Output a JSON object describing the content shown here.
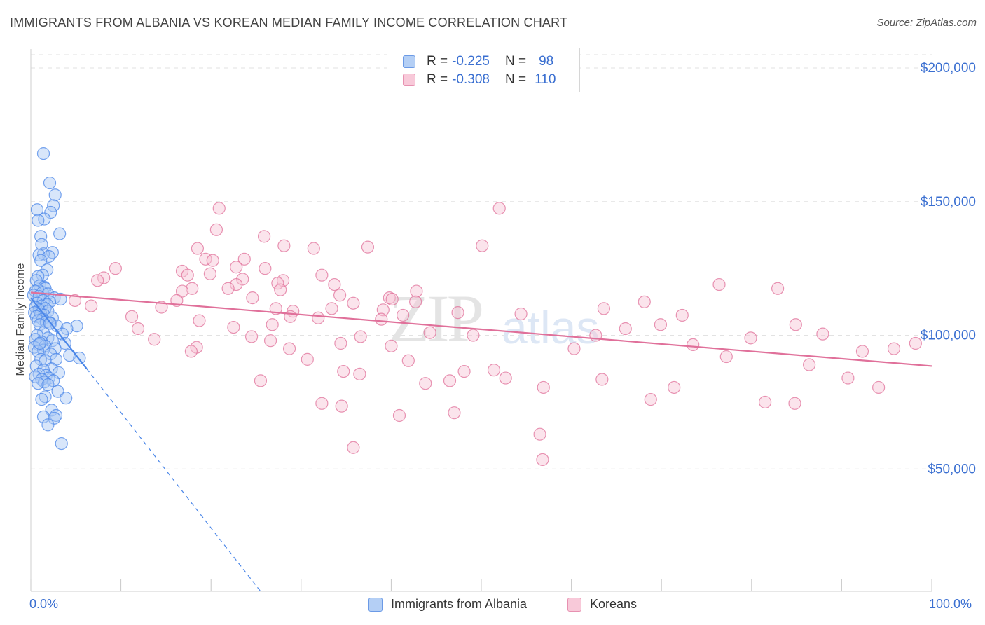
{
  "header": {
    "title": "IMMIGRANTS FROM ALBANIA VS KOREAN MEDIAN FAMILY INCOME CORRELATION CHART",
    "source": "Source: ZipAtlas.com"
  },
  "legend": {
    "albania": {
      "r_label": "R =",
      "r_value": "-0.225",
      "n_label": "N =",
      "n_value": "98"
    },
    "korean": {
      "r_label": "R =",
      "r_value": "-0.308",
      "n_label": "N =",
      "n_value": "110"
    }
  },
  "watermark": {
    "zip": "ZIP",
    "atlas": "atlas"
  },
  "colors": {
    "albania": "#4a86e8",
    "albania_fill": "#a9c8f5",
    "korean": "#e0709a",
    "korean_fill": "#f6c3d5",
    "tick_text": "#3a6fd1",
    "grid": "#e2e2e2"
  },
  "chart_data": {
    "type": "scatter",
    "xlabel": "",
    "ylabel": "Median Family Income",
    "xlim": [
      0,
      100
    ],
    "ylim": [
      0,
      210000
    ],
    "x_tick_labels": {
      "left": "0.0%",
      "right": "100.0%"
    },
    "y_ticks": [
      {
        "value": 50000,
        "label": "$50,000"
      },
      {
        "value": 100000,
        "label": "$100,000"
      },
      {
        "value": 150000,
        "label": "$150,000"
      },
      {
        "value": 200000,
        "label": "$200,000"
      }
    ],
    "series": [
      {
        "name": "Immigrants from Albania",
        "trend": {
          "x": [
            0,
            6.2
          ],
          "y": [
            114000,
            87500
          ],
          "dashed_to": [
            25.5,
            0
          ]
        },
        "points": [
          [
            1.4,
            168000
          ],
          [
            2.1,
            157000
          ],
          [
            2.7,
            152500
          ],
          [
            2.5,
            148500
          ],
          [
            2.2,
            146000
          ],
          [
            0.7,
            147000
          ],
          [
            1.5,
            143500
          ],
          [
            0.8,
            143000
          ],
          [
            3.2,
            138000
          ],
          [
            1.1,
            137000
          ],
          [
            1.2,
            134000
          ],
          [
            2.4,
            131000
          ],
          [
            1.4,
            130500
          ],
          [
            0.9,
            130000
          ],
          [
            2.0,
            129500
          ],
          [
            1.1,
            128000
          ],
          [
            1.8,
            124500
          ],
          [
            1.3,
            122500
          ],
          [
            0.8,
            122000
          ],
          [
            0.6,
            120500
          ],
          [
            1.0,
            118500
          ],
          [
            1.5,
            118000
          ],
          [
            1.6,
            117500
          ],
          [
            0.8,
            117000
          ],
          [
            0.5,
            116500
          ],
          [
            1.3,
            116000
          ],
          [
            1.9,
            115500
          ],
          [
            0.3,
            115000
          ],
          [
            0.9,
            114500
          ],
          [
            2.6,
            114000
          ],
          [
            3.3,
            113500
          ],
          [
            1.4,
            113000
          ],
          [
            2.1,
            112500
          ],
          [
            0.7,
            112000
          ],
          [
            1.8,
            111500
          ],
          [
            1.2,
            111000
          ],
          [
            0.5,
            110500
          ],
          [
            1.6,
            110000
          ],
          [
            0.9,
            109500
          ],
          [
            1.9,
            109000
          ],
          [
            0.4,
            108500
          ],
          [
            1.1,
            108000
          ],
          [
            1.5,
            107500
          ],
          [
            0.6,
            107000
          ],
          [
            2.4,
            106500
          ],
          [
            1.3,
            106000
          ],
          [
            0.8,
            105500
          ],
          [
            1.7,
            105000
          ],
          [
            2.2,
            104500
          ],
          [
            1.0,
            104000
          ],
          [
            2.9,
            103500
          ],
          [
            5.1,
            103500
          ],
          [
            4.0,
            102500
          ],
          [
            1.4,
            101000
          ],
          [
            3.5,
            100500
          ],
          [
            0.7,
            100000
          ],
          [
            1.9,
            99000
          ],
          [
            0.5,
            98500
          ],
          [
            2.4,
            98000
          ],
          [
            1.2,
            97500
          ],
          [
            3.8,
            97000
          ],
          [
            0.9,
            96500
          ],
          [
            1.6,
            96000
          ],
          [
            0.4,
            95500
          ],
          [
            2.7,
            95000
          ],
          [
            1.4,
            94500
          ],
          [
            0.8,
            94000
          ],
          [
            2.2,
            93000
          ],
          [
            4.3,
            92500
          ],
          [
            5.4,
            91500
          ],
          [
            1.1,
            91000
          ],
          [
            2.8,
            91000
          ],
          [
            1.6,
            90500
          ],
          [
            0.6,
            88500
          ],
          [
            2.3,
            87500
          ],
          [
            1.4,
            87000
          ],
          [
            3.1,
            86000
          ],
          [
            0.9,
            85500
          ],
          [
            1.7,
            85000
          ],
          [
            0.5,
            84500
          ],
          [
            2.0,
            84000
          ],
          [
            1.2,
            83500
          ],
          [
            2.5,
            83000
          ],
          [
            1.5,
            82500
          ],
          [
            0.8,
            82000
          ],
          [
            1.9,
            81500
          ],
          [
            3.0,
            79000
          ],
          [
            1.6,
            77000
          ],
          [
            3.9,
            76500
          ],
          [
            1.2,
            76000
          ],
          [
            2.3,
            72000
          ],
          [
            2.8,
            70000
          ],
          [
            1.4,
            69500
          ],
          [
            2.6,
            69000
          ],
          [
            1.9,
            66500
          ],
          [
            3.4,
            59500
          ],
          [
            1.0,
            97000
          ],
          [
            2.1,
            104500
          ]
        ]
      },
      {
        "name": "Koreans",
        "trend": {
          "x": [
            0,
            100
          ],
          "y": [
            116000,
            88500
          ]
        },
        "points": [
          [
            20.9,
            147500
          ],
          [
            52.0,
            147500
          ],
          [
            20.6,
            139500
          ],
          [
            25.9,
            137000
          ],
          [
            50.1,
            133500
          ],
          [
            28.1,
            133500
          ],
          [
            37.4,
            133000
          ],
          [
            31.4,
            132500
          ],
          [
            18.5,
            132500
          ],
          [
            19.4,
            128500
          ],
          [
            23.7,
            128500
          ],
          [
            20.2,
            128000
          ],
          [
            22.8,
            125500
          ],
          [
            9.4,
            125000
          ],
          [
            26.0,
            125000
          ],
          [
            16.8,
            124000
          ],
          [
            19.9,
            123000
          ],
          [
            32.3,
            122500
          ],
          [
            17.4,
            122500
          ],
          [
            8.1,
            121500
          ],
          [
            23.5,
            121000
          ],
          [
            7.4,
            120500
          ],
          [
            28.0,
            120500
          ],
          [
            27.4,
            119500
          ],
          [
            22.8,
            119000
          ],
          [
            33.7,
            119000
          ],
          [
            21.9,
            117500
          ],
          [
            17.9,
            117500
          ],
          [
            27.7,
            117000
          ],
          [
            16.8,
            116500
          ],
          [
            42.8,
            116500
          ],
          [
            34.3,
            115000
          ],
          [
            39.8,
            114000
          ],
          [
            24.6,
            114000
          ],
          [
            40.1,
            113500
          ],
          [
            16.2,
            113000
          ],
          [
            4.9,
            113000
          ],
          [
            42.7,
            112500
          ],
          [
            35.8,
            112000
          ],
          [
            6.7,
            111000
          ],
          [
            14.5,
            110500
          ],
          [
            27.2,
            110000
          ],
          [
            33.4,
            110000
          ],
          [
            39.1,
            109500
          ],
          [
            29.1,
            109000
          ],
          [
            47.4,
            108500
          ],
          [
            54.4,
            108000
          ],
          [
            41.3,
            107500
          ],
          [
            28.8,
            107000
          ],
          [
            11.2,
            107000
          ],
          [
            31.9,
            106500
          ],
          [
            38.9,
            106000
          ],
          [
            18.7,
            105500
          ],
          [
            26.8,
            104000
          ],
          [
            22.5,
            103000
          ],
          [
            11.9,
            102500
          ],
          [
            44.3,
            101000
          ],
          [
            49.1,
            100000
          ],
          [
            36.6,
            99500
          ],
          [
            24.5,
            99500
          ],
          [
            13.7,
            98500
          ],
          [
            26.6,
            98000
          ],
          [
            34.4,
            97000
          ],
          [
            40.0,
            96000
          ],
          [
            18.4,
            95500
          ],
          [
            28.7,
            95000
          ],
          [
            17.8,
            94000
          ],
          [
            30.7,
            91000
          ],
          [
            41.9,
            90500
          ],
          [
            51.4,
            87000
          ],
          [
            34.7,
            86500
          ],
          [
            48.1,
            86500
          ],
          [
            36.5,
            85500
          ],
          [
            52.7,
            84000
          ],
          [
            63.4,
            83500
          ],
          [
            25.5,
            83000
          ],
          [
            46.5,
            83000
          ],
          [
            43.8,
            82000
          ],
          [
            56.9,
            80500
          ],
          [
            71.4,
            80500
          ],
          [
            68.8,
            76000
          ],
          [
            81.5,
            75000
          ],
          [
            84.8,
            74500
          ],
          [
            32.3,
            74500
          ],
          [
            34.5,
            73500
          ],
          [
            47.0,
            71000
          ],
          [
            40.9,
            70000
          ],
          [
            56.5,
            63000
          ],
          [
            35.8,
            58000
          ],
          [
            56.8,
            53500
          ],
          [
            63.6,
            110000
          ],
          [
            68.1,
            112500
          ],
          [
            72.3,
            107500
          ],
          [
            76.4,
            119000
          ],
          [
            82.9,
            117500
          ],
          [
            84.9,
            104000
          ],
          [
            87.9,
            100500
          ],
          [
            92.3,
            94000
          ],
          [
            95.8,
            95000
          ],
          [
            98.2,
            97000
          ],
          [
            60.3,
            95000
          ],
          [
            62.7,
            100000
          ],
          [
            66.0,
            102500
          ],
          [
            69.9,
            104000
          ],
          [
            73.5,
            96500
          ],
          [
            77.2,
            92000
          ],
          [
            79.9,
            99000
          ],
          [
            86.4,
            89000
          ],
          [
            90.7,
            84000
          ],
          [
            94.1,
            80500
          ]
        ]
      }
    ]
  }
}
